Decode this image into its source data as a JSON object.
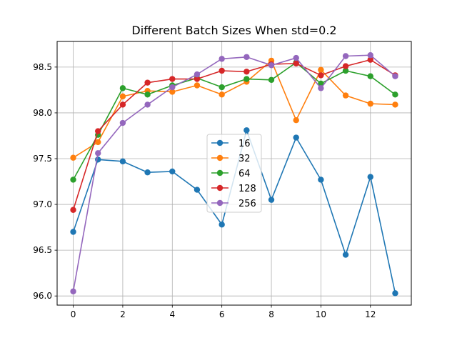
{
  "chart_data": {
    "type": "line",
    "title": "Different Batch Sizes When std=0.2",
    "xlabel": "",
    "ylabel": "",
    "xlim": [
      -0.65,
      13.65
    ],
    "ylim": [
      95.9,
      98.78
    ],
    "x_ticks": [
      0,
      2,
      4,
      6,
      8,
      10,
      12
    ],
    "y_ticks": [
      96.0,
      96.5,
      97.0,
      97.5,
      98.0,
      98.5
    ],
    "y_tick_labels": [
      "96.0",
      "96.5",
      "97.0",
      "97.5",
      "98.0",
      "98.5"
    ],
    "grid": true,
    "legend_position": "center",
    "x": [
      0,
      1,
      2,
      3,
      4,
      5,
      6,
      7,
      8,
      9,
      10,
      11,
      12,
      13
    ],
    "series": [
      {
        "name": "16",
        "color": "#1f77b4",
        "values": [
          96.7,
          97.49,
          97.47,
          97.35,
          97.36,
          97.16,
          96.78,
          97.81,
          97.05,
          97.73,
          97.27,
          96.45,
          97.3,
          96.03
        ]
      },
      {
        "name": "32",
        "color": "#ff7f0e",
        "values": [
          97.51,
          97.68,
          98.18,
          98.24,
          98.23,
          98.3,
          98.2,
          98.34,
          98.57,
          97.92,
          98.47,
          98.19,
          98.1,
          98.09
        ]
      },
      {
        "name": "64",
        "color": "#2ca02c",
        "values": [
          97.27,
          97.76,
          98.27,
          98.2,
          98.3,
          98.38,
          98.28,
          98.37,
          98.36,
          98.55,
          98.32,
          98.46,
          98.4,
          98.2
        ]
      },
      {
        "name": "128",
        "color": "#d62728",
        "values": [
          96.94,
          97.8,
          98.09,
          98.33,
          98.37,
          98.37,
          98.46,
          98.45,
          98.53,
          98.54,
          98.41,
          98.51,
          98.58,
          98.41
        ]
      },
      {
        "name": "256",
        "color": "#9467bd",
        "values": [
          96.05,
          97.56,
          97.89,
          98.09,
          98.28,
          98.42,
          98.59,
          98.61,
          98.52,
          98.6,
          98.27,
          98.62,
          98.63,
          98.4
        ]
      }
    ]
  }
}
